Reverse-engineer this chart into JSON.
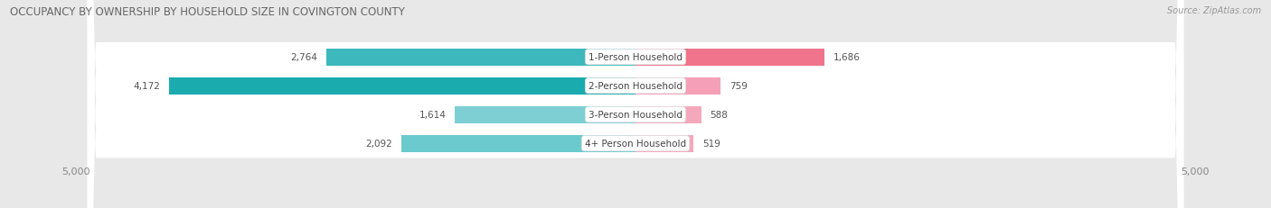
{
  "title": "OCCUPANCY BY OWNERSHIP BY HOUSEHOLD SIZE IN COVINGTON COUNTY",
  "source": "Source: ZipAtlas.com",
  "categories": [
    "1-Person Household",
    "2-Person Household",
    "3-Person Household",
    "4+ Person Household"
  ],
  "owner_values": [
    2764,
    4172,
    1614,
    2092
  ],
  "renter_values": [
    1686,
    759,
    588,
    519
  ],
  "max_value": 5000,
  "owner_colors": [
    "#3db8bc",
    "#1aabaf",
    "#7dcfd3",
    "#6bcacd"
  ],
  "renter_colors": [
    "#f0748c",
    "#f5a0b8",
    "#f5a8bc",
    "#f5a8bc"
  ],
  "bg_color": "#e8e8e8",
  "row_bg_color": "#f5f5f5",
  "label_color": "#555555",
  "title_fontsize": 8.5,
  "value_fontsize": 7.5,
  "cat_fontsize": 7.5,
  "tick_fontsize": 8,
  "legend_fontsize": 8,
  "source_fontsize": 7
}
